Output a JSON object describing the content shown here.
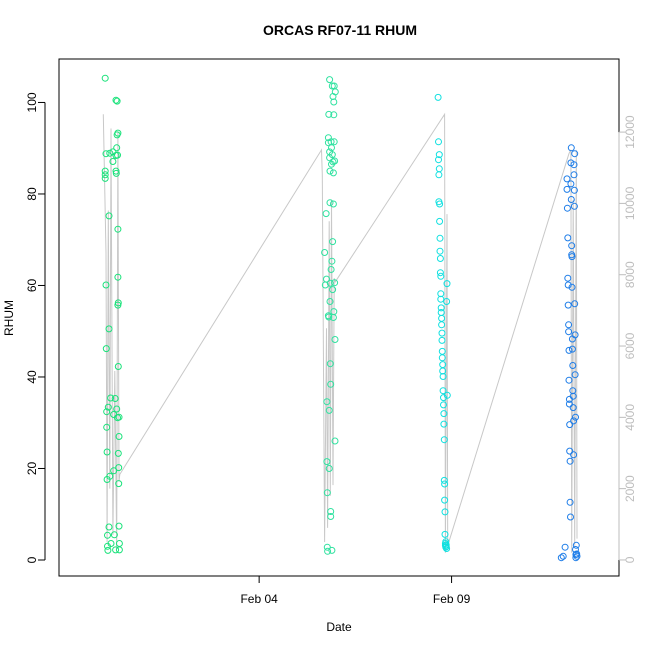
{
  "chart_data": {
    "type": "scatter",
    "title": "ORCAS RF07-11 RHUM",
    "xlabel": "Date",
    "ylabel": "RHUM",
    "ylabel_right": "",
    "x_tick_labels": [
      "Feb 04",
      "Feb 09"
    ],
    "x_tick_values": [
      4.0,
      9.0
    ],
    "xlim": [
      -1.2,
      13.35
    ],
    "ylim": [
      -3.5,
      109.5
    ],
    "y_ticks": [
      0,
      20,
      40,
      60,
      80,
      100
    ],
    "y2lim": [
      -450,
      14050
    ],
    "y2_ticks": [
      0,
      2000,
      4000,
      6000,
      8000,
      10000,
      12000
    ],
    "grid": false,
    "colors": {
      "rf07": "#19e27a",
      "rf08": "#30e2a0",
      "rf09": "#10e0e0",
      "rf11": "#1e7de8",
      "altitude_line": "#c8c8c8",
      "right_axis": "#bdbdbd"
    },
    "series": [
      {
        "key": "rf07",
        "values": [
          [
            0.0,
            105.3
          ],
          [
            0.0,
            85.0
          ],
          [
            0.0,
            84.2
          ],
          [
            0.0,
            83.4
          ],
          [
            0.02,
            88.8
          ],
          [
            0.02,
            60.1
          ],
          [
            0.03,
            46.2
          ],
          [
            0.04,
            32.4
          ],
          [
            0.04,
            29.0
          ],
          [
            0.05,
            23.6
          ],
          [
            0.05,
            17.6
          ],
          [
            0.06,
            5.4
          ],
          [
            0.06,
            3.0
          ],
          [
            0.07,
            2.1
          ],
          [
            0.08,
            33.4
          ],
          [
            0.1,
            75.2
          ],
          [
            0.1,
            50.5
          ],
          [
            0.1,
            7.2
          ],
          [
            0.12,
            88.9
          ],
          [
            0.12,
            18.3
          ],
          [
            0.14,
            35.4
          ],
          [
            0.15,
            3.6
          ],
          [
            0.2,
            89.2
          ],
          [
            0.2,
            87.1
          ],
          [
            0.22,
            31.8
          ],
          [
            0.22,
            19.5
          ],
          [
            0.24,
            5.5
          ],
          [
            0.26,
            35.3
          ],
          [
            0.27,
            2.2
          ],
          [
            0.28,
            100.5
          ],
          [
            0.28,
            88.4
          ],
          [
            0.28,
            85.0
          ],
          [
            0.29,
            84.5
          ],
          [
            0.3,
            90.1
          ],
          [
            0.3,
            33.0
          ],
          [
            0.31,
            100.3
          ],
          [
            0.31,
            92.9
          ],
          [
            0.32,
            88.5
          ],
          [
            0.32,
            31.1
          ],
          [
            0.33,
            93.3
          ],
          [
            0.33,
            72.3
          ],
          [
            0.33,
            61.8
          ],
          [
            0.33,
            55.7
          ],
          [
            0.34,
            56.2
          ],
          [
            0.34,
            42.3
          ],
          [
            0.34,
            23.3
          ],
          [
            0.35,
            20.2
          ],
          [
            0.35,
            16.7
          ],
          [
            0.36,
            31.2
          ],
          [
            0.36,
            27.0
          ],
          [
            0.36,
            7.4
          ],
          [
            0.37,
            3.6
          ],
          [
            0.37,
            2.2
          ]
        ]
      },
      {
        "key": "rf08",
        "values": [
          [
            5.7,
            67.2
          ],
          [
            5.72,
            60.1
          ],
          [
            5.74,
            75.7
          ],
          [
            5.75,
            61.4
          ],
          [
            5.76,
            34.6
          ],
          [
            5.76,
            21.5
          ],
          [
            5.77,
            14.7
          ],
          [
            5.77,
            2.8
          ],
          [
            5.78,
            1.9
          ],
          [
            5.8,
            92.3
          ],
          [
            5.8,
            91.2
          ],
          [
            5.8,
            53.4
          ],
          [
            5.81,
            97.4
          ],
          [
            5.81,
            53.1
          ],
          [
            5.82,
            32.7
          ],
          [
            5.82,
            20.0
          ],
          [
            5.83,
            105.0
          ],
          [
            5.83,
            89.2
          ],
          [
            5.83,
            87.9
          ],
          [
            5.84,
            85.0
          ],
          [
            5.84,
            78.1
          ],
          [
            5.84,
            56.5
          ],
          [
            5.85,
            60.5
          ],
          [
            5.85,
            42.9
          ],
          [
            5.86,
            38.4
          ],
          [
            5.86,
            10.6
          ],
          [
            5.86,
            9.5
          ],
          [
            5.87,
            63.5
          ],
          [
            5.87,
            91.4
          ],
          [
            5.88,
            90.1
          ],
          [
            5.88,
            86.5
          ],
          [
            5.89,
            65.3
          ],
          [
            5.89,
            2.1
          ],
          [
            5.9,
            103.6
          ],
          [
            5.9,
            88.6
          ],
          [
            5.91,
            69.6
          ],
          [
            5.91,
            59.1
          ],
          [
            5.92,
            101.3
          ],
          [
            5.92,
            87.0
          ],
          [
            5.93,
            84.6
          ],
          [
            5.93,
            77.8
          ],
          [
            5.93,
            53.0
          ],
          [
            5.94,
            100.1
          ],
          [
            5.94,
            97.3
          ],
          [
            5.94,
            54.3
          ],
          [
            5.95,
            103.6
          ],
          [
            5.95,
            91.4
          ],
          [
            5.96,
            87.2
          ],
          [
            5.96,
            60.6
          ],
          [
            5.97,
            48.2
          ],
          [
            5.97,
            26.0
          ],
          [
            5.98,
            102.3
          ]
        ]
      },
      {
        "key": "rf09",
        "values": [
          [
            8.65,
            101.1
          ],
          [
            8.66,
            91.4
          ],
          [
            8.66,
            87.5
          ],
          [
            8.67,
            84.2
          ],
          [
            8.67,
            78.3
          ],
          [
            8.68,
            88.6
          ],
          [
            8.68,
            85.5
          ],
          [
            8.69,
            77.8
          ],
          [
            8.69,
            74.0
          ],
          [
            8.7,
            70.3
          ],
          [
            8.7,
            67.5
          ],
          [
            8.71,
            65.9
          ],
          [
            8.71,
            62.8
          ],
          [
            8.72,
            62.0
          ],
          [
            8.72,
            58.2
          ],
          [
            8.72,
            57.0
          ],
          [
            8.73,
            55.1
          ],
          [
            8.73,
            54.1
          ],
          [
            8.74,
            52.8
          ],
          [
            8.74,
            51.4
          ],
          [
            8.75,
            49.6
          ],
          [
            8.75,
            48.0
          ],
          [
            8.76,
            45.6
          ],
          [
            8.76,
            44.2
          ],
          [
            8.77,
            42.7
          ],
          [
            8.77,
            41.3
          ],
          [
            8.78,
            40.1
          ],
          [
            8.78,
            37.0
          ],
          [
            8.79,
            35.5
          ],
          [
            8.79,
            33.9
          ],
          [
            8.8,
            32.0
          ],
          [
            8.8,
            29.7
          ],
          [
            8.81,
            26.3
          ],
          [
            8.81,
            17.4
          ],
          [
            8.82,
            16.6
          ],
          [
            8.82,
            13.1
          ],
          [
            8.83,
            10.5
          ],
          [
            8.83,
            5.6
          ],
          [
            8.84,
            3.6
          ],
          [
            8.84,
            3.2
          ],
          [
            8.85,
            2.8
          ],
          [
            8.85,
            4.0
          ],
          [
            8.86,
            3.3
          ],
          [
            8.86,
            3.0
          ],
          [
            8.87,
            2.5
          ],
          [
            8.87,
            56.5
          ],
          [
            8.88,
            60.4
          ],
          [
            8.89,
            36.0
          ]
        ]
      },
      {
        "key": "rf11",
        "values": [
          [
            11.85,
            0.5
          ],
          [
            11.9,
            0.8
          ],
          [
            11.95,
            2.8
          ],
          [
            12.0,
            83.3
          ],
          [
            12.0,
            81.0
          ],
          [
            12.01,
            76.9
          ],
          [
            12.02,
            70.4
          ],
          [
            12.02,
            61.6
          ],
          [
            12.03,
            60.1
          ],
          [
            12.03,
            55.7
          ],
          [
            12.04,
            51.4
          ],
          [
            12.04,
            49.9
          ],
          [
            12.05,
            45.8
          ],
          [
            12.05,
            39.3
          ],
          [
            12.06,
            35.1
          ],
          [
            12.06,
            34.1
          ],
          [
            12.07,
            29.6
          ],
          [
            12.07,
            23.8
          ],
          [
            12.08,
            21.6
          ],
          [
            12.08,
            12.6
          ],
          [
            12.09,
            9.4
          ],
          [
            12.1,
            86.8
          ],
          [
            12.1,
            82.2
          ],
          [
            12.11,
            90.1
          ],
          [
            12.11,
            78.8
          ],
          [
            12.12,
            68.7
          ],
          [
            12.12,
            66.7
          ],
          [
            12.13,
            66.3
          ],
          [
            12.13,
            59.6
          ],
          [
            12.14,
            48.3
          ],
          [
            12.14,
            46.1
          ],
          [
            12.15,
            42.5
          ],
          [
            12.15,
            37.0
          ],
          [
            12.16,
            35.8
          ],
          [
            12.16,
            33.3
          ],
          [
            12.17,
            30.4
          ],
          [
            12.17,
            23.0
          ],
          [
            12.18,
            86.4
          ],
          [
            12.18,
            84.2
          ],
          [
            12.19,
            80.8
          ],
          [
            12.19,
            77.3
          ],
          [
            12.2,
            88.8
          ],
          [
            12.2,
            56.0
          ],
          [
            12.21,
            49.2
          ],
          [
            12.21,
            40.5
          ],
          [
            12.22,
            31.2
          ],
          [
            12.22,
            2.3
          ],
          [
            12.23,
            0.5
          ],
          [
            12.23,
            1.2
          ],
          [
            12.24,
            3.2
          ],
          [
            12.25,
            1.3
          ],
          [
            12.26,
            0.8
          ]
        ]
      }
    ],
    "altitude_line": {
      "axis": "right",
      "values": [
        [
          -0.05,
          12500
        ],
        [
          0.02,
          8600
        ],
        [
          0.05,
          500
        ],
        [
          0.08,
          9800
        ],
        [
          0.12,
          2000
        ],
        [
          0.15,
          12100
        ],
        [
          0.2,
          700
        ],
        [
          0.25,
          5300
        ],
        [
          0.3,
          300
        ],
        [
          0.33,
          12000
        ],
        [
          0.36,
          2200
        ],
        [
          0.38,
          2400
        ],
        [
          5.62,
          11500
        ],
        [
          5.64,
          10800
        ],
        [
          5.7,
          500
        ],
        [
          5.75,
          6500
        ],
        [
          5.78,
          900
        ],
        [
          5.82,
          9500
        ],
        [
          5.85,
          1800
        ],
        [
          5.88,
          10100
        ],
        [
          5.92,
          2100
        ],
        [
          5.95,
          7900
        ],
        [
          5.98,
          7800
        ],
        [
          8.82,
          12500
        ],
        [
          8.84,
          200
        ],
        [
          8.88,
          9700
        ],
        [
          8.9,
          400
        ],
        [
          12.05,
          11400
        ],
        [
          12.1,
          11500
        ],
        [
          12.12,
          200
        ],
        [
          12.16,
          10100
        ],
        [
          12.2,
          400
        ],
        [
          12.24,
          11500
        ],
        [
          12.26,
          600
        ]
      ]
    }
  }
}
